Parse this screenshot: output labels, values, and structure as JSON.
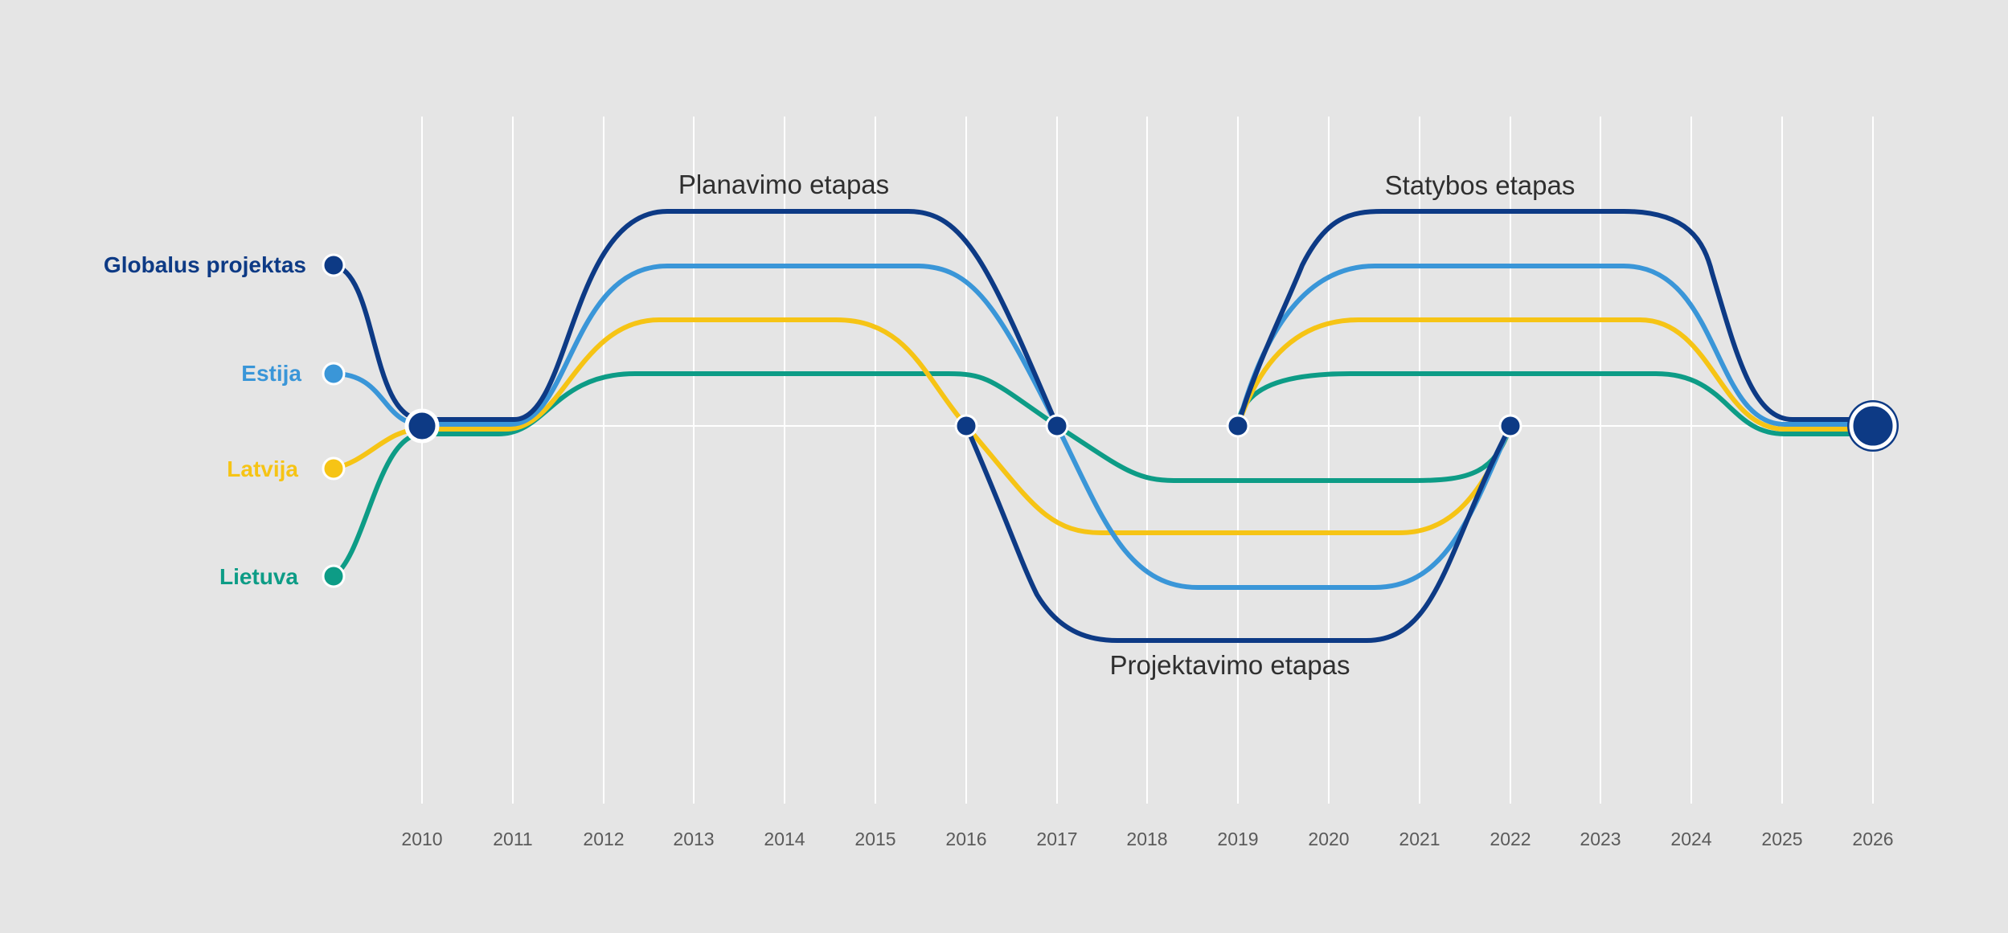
{
  "years": [
    "2010",
    "2011",
    "2012",
    "2013",
    "2014",
    "2015",
    "2016",
    "2017",
    "2018",
    "2019",
    "2020",
    "2021",
    "2022",
    "2023",
    "2024",
    "2025",
    "2026"
  ],
  "phases": {
    "planning": "Planavimo etapas",
    "design": "Projektavimo etapas",
    "construction": "Statybos etapas"
  },
  "legend": [
    {
      "key": "global",
      "label": "Globalus projektas",
      "color": "#0d3a85"
    },
    {
      "key": "estonia",
      "label": "Estija",
      "color": "#3a96d8"
    },
    {
      "key": "latvia",
      "label": "Latvija",
      "color": "#f6c415"
    },
    {
      "key": "lithuania",
      "label": "Lietuva",
      "color": "#0d9c86"
    }
  ],
  "colors": {
    "background": "#e5e5e5",
    "gridline": "#ffffff",
    "global": "#0d3a85",
    "estonia": "#3a96d8",
    "latvia": "#f6c415",
    "lithuania": "#0d9c86",
    "text": "#2f2f2f",
    "year_text": "#5a5a5a"
  },
  "milestones": [
    "2010",
    "2016",
    "2017",
    "2019",
    "2022",
    "2026"
  ]
}
